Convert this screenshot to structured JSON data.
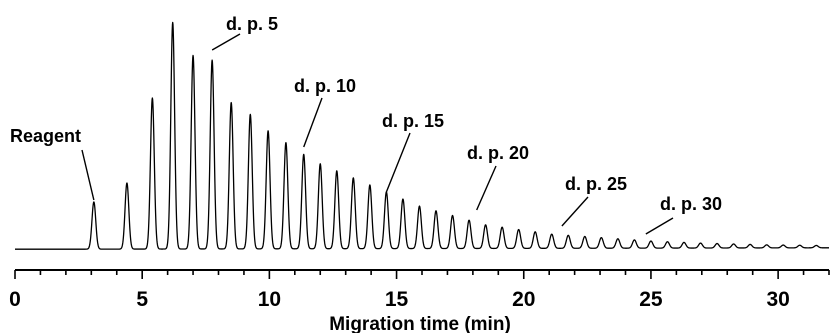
{
  "chart_data": {
    "type": "line",
    "title": "",
    "xlabel": "Migration time (min)",
    "ylabel": "",
    "xlim": [
      0,
      32
    ],
    "ylim": [
      0,
      1
    ],
    "xticks": [
      "0",
      "5",
      "10",
      "15",
      "20",
      "25",
      "30"
    ],
    "grid": false,
    "legend": "none",
    "line_color": "#000000",
    "series": [
      {
        "peaks": {
          "x": [
            3.1,
            4.4,
            5.4,
            6.2,
            7.0,
            7.75,
            8.5,
            9.25,
            9.95,
            10.65,
            11.35,
            12.0,
            12.65,
            13.3,
            13.95,
            14.6,
            15.25,
            15.9,
            16.55,
            17.2,
            17.85,
            18.5,
            19.15,
            19.8,
            20.45,
            21.1,
            21.75,
            22.4,
            23.05,
            23.7,
            24.35,
            25.0,
            25.65,
            26.3,
            26.95,
            27.6,
            28.25,
            28.9,
            29.55,
            30.2,
            30.85,
            31.5
          ],
          "y": [
            0.2,
            0.28,
            0.64,
            0.96,
            0.82,
            0.8,
            0.62,
            0.57,
            0.5,
            0.45,
            0.4,
            0.36,
            0.33,
            0.3,
            0.27,
            0.24,
            0.21,
            0.18,
            0.16,
            0.14,
            0.12,
            0.1,
            0.09,
            0.08,
            0.07,
            0.06,
            0.055,
            0.05,
            0.045,
            0.04,
            0.035,
            0.03,
            0.027,
            0.024,
            0.021,
            0.019,
            0.017,
            0.015,
            0.013,
            0.012,
            0.011,
            0.01
          ]
        }
      }
    ],
    "annotations": [
      {
        "text": "Reagent",
        "x": 3.1
      },
      {
        "text": "d. p. 5",
        "x": 7.75
      },
      {
        "text": "d. p. 10",
        "x": 11.35
      },
      {
        "text": "d. p. 15",
        "x": 14.6
      },
      {
        "text": "d. p. 20",
        "x": 18.15
      },
      {
        "text": "d. p. 25",
        "x": 21.5
      },
      {
        "text": "d. p. 30",
        "x": 24.8
      }
    ]
  }
}
